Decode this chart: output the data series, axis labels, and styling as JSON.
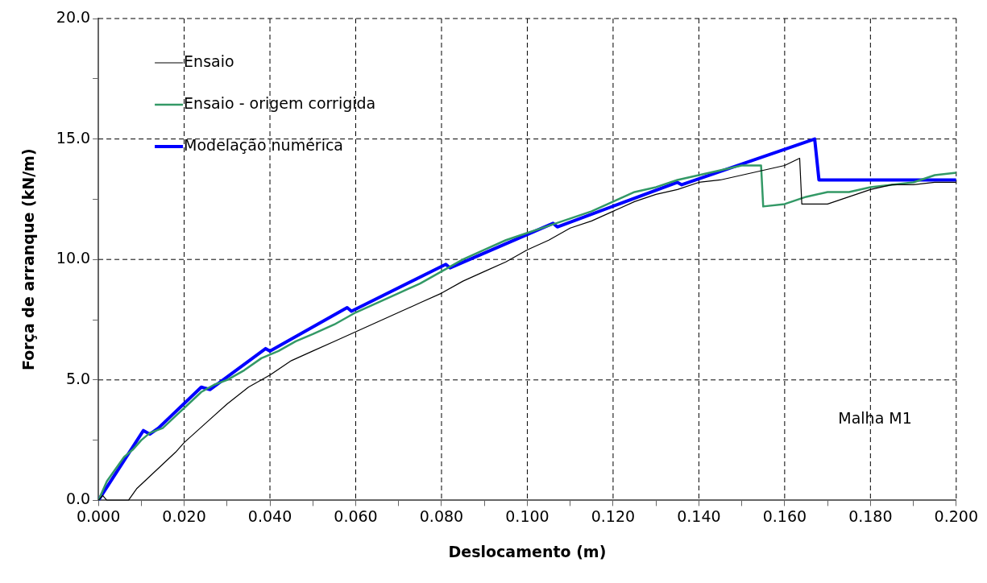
{
  "chart_data": {
    "type": "line",
    "xlabel": "Deslocamento (m)",
    "ylabel": "Força de arranque (kN/m)",
    "xlim": [
      0,
      0.2
    ],
    "ylim": [
      0,
      20
    ],
    "xticks": [
      {
        "value": 0,
        "label": "0.000"
      },
      {
        "value": 0.01,
        "label": null
      },
      {
        "value": 0.02,
        "label": "0.020"
      },
      {
        "value": 0.03,
        "label": null
      },
      {
        "value": 0.04,
        "label": "0.040"
      },
      {
        "value": 0.05,
        "label": null
      },
      {
        "value": 0.06,
        "label": "0.060"
      },
      {
        "value": 0.07,
        "label": null
      },
      {
        "value": 0.08,
        "label": "0.080"
      },
      {
        "value": 0.09,
        "label": null
      },
      {
        "value": 0.1,
        "label": "0.100"
      },
      {
        "value": 0.11,
        "label": null
      },
      {
        "value": 0.12,
        "label": "0.120"
      },
      {
        "value": 0.13,
        "label": null
      },
      {
        "value": 0.14,
        "label": "0.140"
      },
      {
        "value": 0.15,
        "label": null
      },
      {
        "value": 0.16,
        "label": "0.160"
      },
      {
        "value": 0.17,
        "label": null
      },
      {
        "value": 0.18,
        "label": "0.180"
      },
      {
        "value": 0.19,
        "label": null
      },
      {
        "value": 0.2,
        "label": "0.200"
      }
    ],
    "yticks": [
      {
        "value": 0,
        "label": "0.0"
      },
      {
        "value": 2.5,
        "label": null
      },
      {
        "value": 5,
        "label": "5.0"
      },
      {
        "value": 7.5,
        "label": null
      },
      {
        "value": 10,
        "label": "10.0"
      },
      {
        "value": 12.5,
        "label": null
      },
      {
        "value": 15,
        "label": "15.0"
      },
      {
        "value": 17.5,
        "label": null
      },
      {
        "value": 20,
        "label": "20.0"
      }
    ],
    "grid": true,
    "legend": "top left",
    "marker": "none",
    "annotations": [
      "Malha M1"
    ],
    "series": [
      {
        "name": "Ensaio",
        "color": "#000000",
        "x": [
          0,
          0.001,
          0.002,
          0.007,
          0.009,
          0.012,
          0.015,
          0.018,
          0.02,
          0.025,
          0.03,
          0.035,
          0.04,
          0.045,
          0.05,
          0.055,
          0.06,
          0.065,
          0.07,
          0.075,
          0.08,
          0.085,
          0.09,
          0.095,
          0.1,
          0.105,
          0.11,
          0.115,
          0.12,
          0.125,
          0.13,
          0.135,
          0.14,
          0.145,
          0.15,
          0.155,
          0.16,
          0.1635,
          0.164,
          0.17,
          0.175,
          0.18,
          0.185,
          0.19,
          0.195,
          0.2
        ],
        "values": [
          0,
          0.2,
          0,
          0,
          0.5,
          1.0,
          1.5,
          2.0,
          2.4,
          3.2,
          4.0,
          4.7,
          5.2,
          5.8,
          6.2,
          6.6,
          7.0,
          7.4,
          7.8,
          8.2,
          8.6,
          9.1,
          9.5,
          9.9,
          10.4,
          10.8,
          11.3,
          11.6,
          12.0,
          12.4,
          12.7,
          12.9,
          13.2,
          13.3,
          13.5,
          13.7,
          13.9,
          14.2,
          12.3,
          12.3,
          12.6,
          12.9,
          13.1,
          13.1,
          13.2,
          13.2
        ]
      },
      {
        "name": "Ensaio - origem corrigida",
        "color": "#339966",
        "x": [
          0,
          0.002,
          0.004,
          0.006,
          0.008,
          0.01,
          0.012,
          0.015,
          0.018,
          0.021,
          0.024,
          0.027,
          0.03,
          0.034,
          0.038,
          0.042,
          0.046,
          0.05,
          0.055,
          0.06,
          0.065,
          0.07,
          0.075,
          0.08,
          0.085,
          0.09,
          0.095,
          0.1,
          0.105,
          0.11,
          0.115,
          0.12,
          0.125,
          0.13,
          0.135,
          0.14,
          0.145,
          0.15,
          0.1545,
          0.155,
          0.16,
          0.165,
          0.17,
          0.175,
          0.18,
          0.185,
          0.19,
          0.195,
          0.2
        ],
        "values": [
          0,
          0.8,
          1.3,
          1.8,
          2.1,
          2.5,
          2.8,
          3.0,
          3.5,
          4.0,
          4.5,
          4.8,
          5.0,
          5.4,
          5.9,
          6.2,
          6.6,
          6.9,
          7.3,
          7.8,
          8.2,
          8.6,
          9.0,
          9.5,
          10.0,
          10.4,
          10.8,
          11.1,
          11.4,
          11.7,
          12.0,
          12.4,
          12.8,
          13.0,
          13.3,
          13.5,
          13.7,
          13.9,
          13.9,
          12.2,
          12.3,
          12.6,
          12.8,
          12.8,
          13.0,
          13.1,
          13.2,
          13.5,
          13.6
        ]
      },
      {
        "name": "Modelação numérica",
        "color": "#0000ff",
        "x": [
          0,
          0.0105,
          0.012,
          0.014,
          0.024,
          0.026,
          0.039,
          0.04,
          0.058,
          0.059,
          0.081,
          0.082,
          0.106,
          0.107,
          0.135,
          0.136,
          0.167,
          0.168,
          0.2
        ],
        "values": [
          0,
          2.9,
          2.75,
          3.0,
          4.7,
          4.6,
          6.3,
          6.2,
          8.0,
          7.85,
          9.8,
          9.65,
          11.5,
          11.35,
          13.2,
          13.1,
          15.0,
          13.3,
          13.3
        ]
      }
    ]
  }
}
